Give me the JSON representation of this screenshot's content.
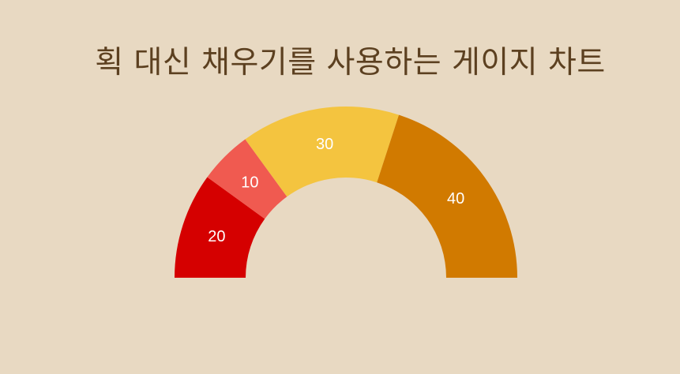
{
  "chart_data": {
    "type": "pie",
    "variant": "half-donut gauge",
    "title": "획 대신 채우기를 사용하는 게이지 차트",
    "slices": [
      {
        "label": "20",
        "value": 20,
        "color": "#d50000"
      },
      {
        "label": "10",
        "value": 10,
        "color": "#f05a50"
      },
      {
        "label": "30",
        "value": 30,
        "color": "#f4c43f"
      },
      {
        "label": "40",
        "value": 40,
        "color": "#d17a00"
      }
    ],
    "start_angle_deg": 180,
    "end_angle_deg": 360,
    "background_color": "#e8d9c2",
    "title_color": "#5c4020",
    "label_color": "#ffffff"
  }
}
